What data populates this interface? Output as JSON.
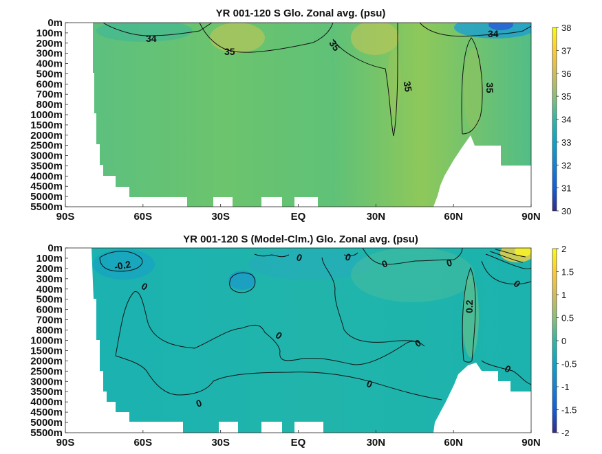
{
  "chart_data": [
    {
      "type": "heatmap",
      "title": "YR 001-120 S Glo. Zonal avg. (psu)",
      "x_ticks": [
        "90S",
        "60S",
        "30S",
        "EQ",
        "30N",
        "60N",
        "90N"
      ],
      "x_tick_values": [
        -90,
        -60,
        -30,
        0,
        30,
        60,
        90
      ],
      "xlim": [
        -90,
        90
      ],
      "y_ticks": [
        "0m",
        "100m",
        "200m",
        "300m",
        "400m",
        "500m",
        "600m",
        "700m",
        "800m",
        "1000m",
        "1500m",
        "2000m",
        "2500m",
        "3000m",
        "3500m",
        "4000m",
        "4500m",
        "5000m",
        "5500m"
      ],
      "colorbar": {
        "min": 30,
        "max": 38,
        "ticks": [
          "30",
          "31",
          "32",
          "33",
          "34",
          "35",
          "36",
          "37",
          "38"
        ]
      },
      "contour_labels": [
        "34",
        "35",
        "35",
        "35",
        "35",
        "34"
      ],
      "grid": false
    },
    {
      "type": "heatmap",
      "title": "YR 001-120 S (Model-Clm.) Glo. Zonal avg. (psu)",
      "x_ticks": [
        "90S",
        "60S",
        "30S",
        "EQ",
        "30N",
        "60N",
        "90N"
      ],
      "x_tick_values": [
        -90,
        -60,
        -30,
        0,
        30,
        60,
        90
      ],
      "xlim": [
        -90,
        90
      ],
      "y_ticks": [
        "0m",
        "100m",
        "200m",
        "300m",
        "400m",
        "500m",
        "600m",
        "700m",
        "800m",
        "1000m",
        "1500m",
        "2000m",
        "2500m",
        "3000m",
        "3500m",
        "4000m",
        "4500m",
        "5000m",
        "5500m"
      ],
      "colorbar": {
        "min": -2,
        "max": 2,
        "ticks": [
          "-2",
          "-1.5",
          "-1",
          "-0.5",
          "0",
          "0.5",
          "1",
          "1.5",
          "2"
        ]
      },
      "contour_labels": [
        "-0.2",
        "0",
        "0",
        "0",
        "0",
        "0",
        "0",
        "0",
        "0",
        "0.2",
        "0",
        "0",
        "0"
      ],
      "grid": false
    }
  ]
}
